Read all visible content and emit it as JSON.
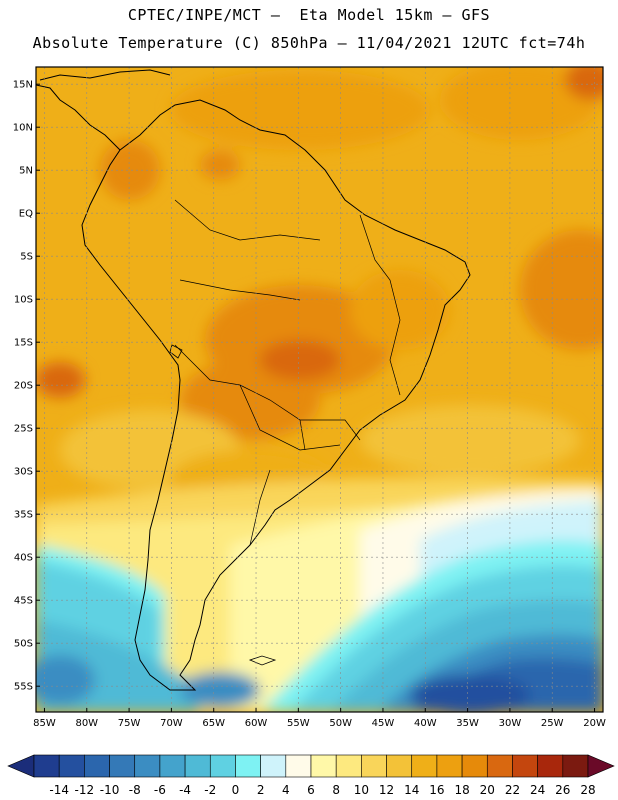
{
  "header": {
    "title_line1": "CPTEC/INPE/MCT –  Eta Model 15km – GFS",
    "title_line2": "Absolute Temperature (C) 850hPa – 11/04/2021 12UTC fct=74h"
  },
  "map": {
    "region": "South America",
    "lon_range": [
      -86,
      -19
    ],
    "lat_range": [
      -58,
      17
    ],
    "lat_ticks": [
      "15N",
      "10N",
      "5N",
      "EQ",
      "5S",
      "10S",
      "15S",
      "20S",
      "25S",
      "30S",
      "35S",
      "40S",
      "45S",
      "50S",
      "55S"
    ],
    "lat_values": [
      15,
      10,
      5,
      0,
      -5,
      -10,
      -15,
      -20,
      -25,
      -30,
      -35,
      -40,
      -45,
      -50,
      -55
    ],
    "lon_ticks": [
      "85W",
      "80W",
      "75W",
      "70W",
      "65W",
      "60W",
      "55W",
      "50W",
      "45W",
      "40W",
      "35W",
      "30W",
      "25W",
      "20W"
    ],
    "lon_values": [
      -85,
      -80,
      -75,
      -70,
      -65,
      -60,
      -55,
      -50,
      -45,
      -40,
      -35,
      -30,
      -25,
      -20
    ]
  },
  "colorbar": {
    "labels": [
      "-14",
      "-12",
      "-10",
      "-8",
      "-6",
      "-4",
      "-2",
      "0",
      "2",
      "4",
      "6",
      "8",
      "10",
      "12",
      "14",
      "16",
      "18",
      "20",
      "22",
      "24",
      "26",
      "28"
    ],
    "colors": [
      "#1f3d8f",
      "#24509f",
      "#2b66ad",
      "#3479b7",
      "#3b8dc2",
      "#44a3cc",
      "#4fbad6",
      "#5fd1e2",
      "#7ef2f3",
      "#cff3fb",
      "#fffbe9",
      "#fff8a8",
      "#fde97f",
      "#f9d55a",
      "#f3c238",
      "#efaf18",
      "#eda010",
      "#e68a0a",
      "#d96810",
      "#c4460e",
      "#a8270c",
      "#7b1a10"
    ],
    "left_arrow_color": "#1b2d7a",
    "right_arrow_color": "#6a0a28"
  }
}
